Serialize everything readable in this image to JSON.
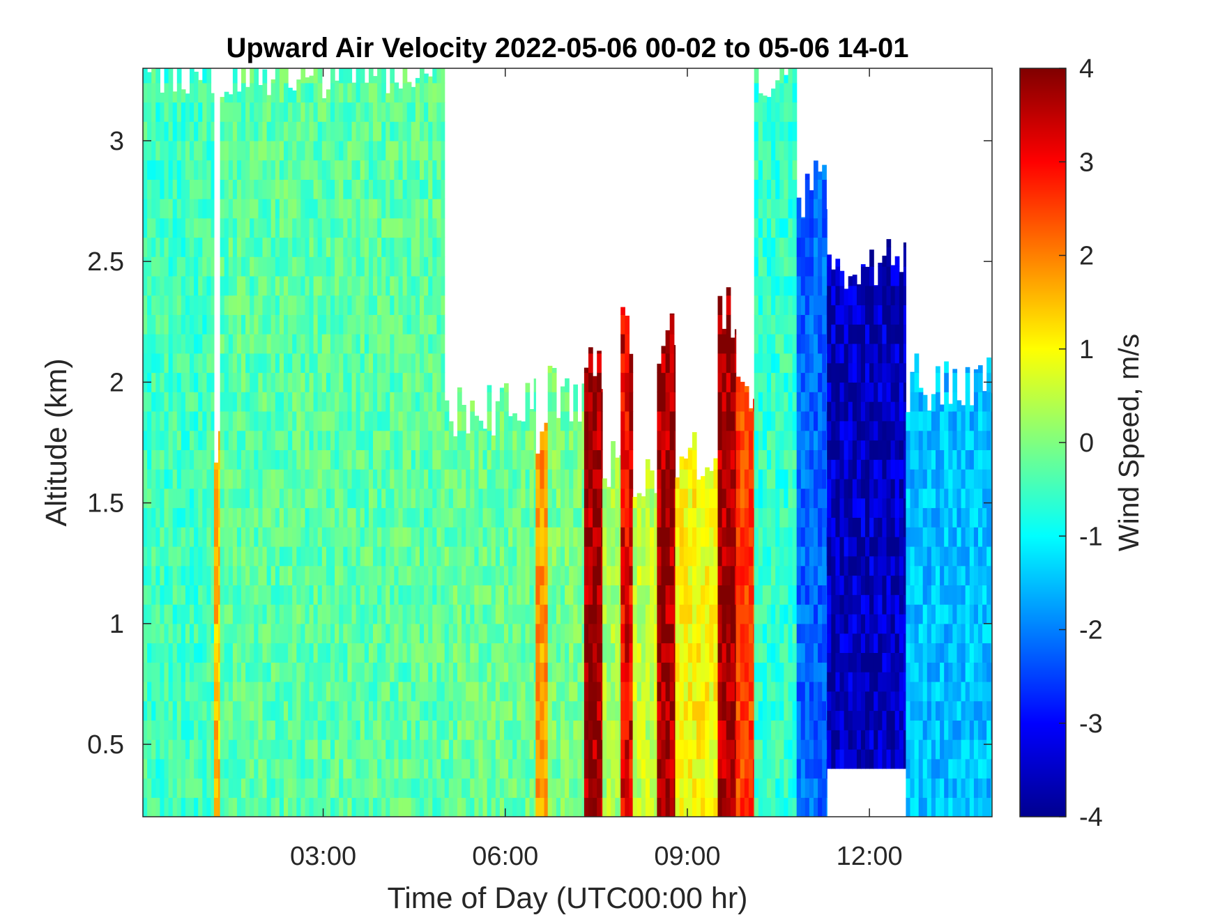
{
  "chart_data": {
    "type": "heatmap",
    "title": "Upward Air Velocity 2022-05-06 00-02 to 05-06 14-01",
    "xlabel": "Time of Day (UTC00:00 hr)",
    "ylabel": "Altitude (km)",
    "colorbar_label": "Wind Speed, m/s",
    "x_range_hours": [
      0.03,
      14.02
    ],
    "y_range_km": [
      0.2,
      3.3
    ],
    "x_ticks": [
      {
        "value": 3,
        "label": "03:00"
      },
      {
        "value": 6,
        "label": "06:00"
      },
      {
        "value": 9,
        "label": "09:00"
      },
      {
        "value": 12,
        "label": "12:00"
      }
    ],
    "y_ticks": [
      {
        "value": 0.5,
        "label": "0.5"
      },
      {
        "value": 1,
        "label": "1"
      },
      {
        "value": 1.5,
        "label": "1.5"
      },
      {
        "value": 2,
        "label": "2"
      },
      {
        "value": 2.5,
        "label": "2.5"
      },
      {
        "value": 3,
        "label": "3"
      }
    ],
    "color_range": [
      -4,
      4
    ],
    "colorbar_ticks": [
      {
        "value": 4,
        "label": "4"
      },
      {
        "value": 3,
        "label": "3"
      },
      {
        "value": 2,
        "label": "2"
      },
      {
        "value": 1,
        "label": "1"
      },
      {
        "value": 0,
        "label": "0"
      },
      {
        "value": -1,
        "label": "-1"
      },
      {
        "value": -2,
        "label": "-2"
      },
      {
        "value": -3,
        "label": "-3"
      },
      {
        "value": -4,
        "label": "-4"
      }
    ],
    "colormap": "jet",
    "colormap_stops": [
      "#00008f",
      "#0000ff",
      "#00ffff",
      "#ffff00",
      "#ff0000",
      "#800000"
    ],
    "grid": false,
    "missing_value_color": "#ffffff",
    "approximate_regions": [
      {
        "t_start": 0.03,
        "t_end": 1.2,
        "alt_min": 0.2,
        "alt_max": 3.3,
        "speed_m_s": -0.5
      },
      {
        "t_start": 1.2,
        "t_end": 1.3,
        "alt_min": 0.2,
        "alt_max": 1.7,
        "speed_m_s": 1.5
      },
      {
        "t_start": 1.3,
        "t_end": 5.0,
        "alt_min": 0.2,
        "alt_max": 3.3,
        "speed_m_s": -0.3
      },
      {
        "t_start": 5.0,
        "t_end": 6.5,
        "alt_min": 0.2,
        "alt_max": 1.9,
        "speed_m_s": -0.2
      },
      {
        "t_start": 6.5,
        "t_end": 6.7,
        "alt_min": 0.2,
        "alt_max": 1.75,
        "speed_m_s": 1.8
      },
      {
        "t_start": 6.7,
        "t_end": 7.3,
        "alt_min": 0.2,
        "alt_max": 1.95,
        "speed_m_s": -0.1
      },
      {
        "t_start": 7.3,
        "t_end": 7.6,
        "alt_min": 0.2,
        "alt_max": 2.05,
        "speed_m_s": 3.8
      },
      {
        "t_start": 7.6,
        "t_end": 7.9,
        "alt_min": 0.2,
        "alt_max": 1.65,
        "speed_m_s": 0.3
      },
      {
        "t_start": 7.9,
        "t_end": 8.1,
        "alt_min": 0.2,
        "alt_max": 2.2,
        "speed_m_s": 3.2
      },
      {
        "t_start": 8.1,
        "t_end": 8.5,
        "alt_min": 0.2,
        "alt_max": 1.6,
        "speed_m_s": 0.5
      },
      {
        "t_start": 8.5,
        "t_end": 8.8,
        "alt_min": 0.2,
        "alt_max": 2.2,
        "speed_m_s": 3.8
      },
      {
        "t_start": 8.8,
        "t_end": 9.5,
        "alt_min": 0.2,
        "alt_max": 1.7,
        "speed_m_s": 1.0
      },
      {
        "t_start": 9.5,
        "t_end": 9.8,
        "alt_min": 0.2,
        "alt_max": 2.3,
        "speed_m_s": 3.8
      },
      {
        "t_start": 9.8,
        "t_end": 10.1,
        "alt_min": 0.2,
        "alt_max": 2.0,
        "speed_m_s": 2.5
      },
      {
        "t_start": 10.1,
        "t_end": 10.8,
        "alt_min": 0.2,
        "alt_max": 3.3,
        "speed_m_s": -0.6
      },
      {
        "t_start": 10.8,
        "t_end": 11.3,
        "alt_min": 0.2,
        "alt_max": 2.8,
        "speed_m_s": -2.2
      },
      {
        "t_start": 11.3,
        "t_end": 12.6,
        "alt_min": 0.4,
        "alt_max": 2.5,
        "speed_m_s": -3.6
      },
      {
        "t_start": 12.6,
        "t_end": 14.02,
        "alt_min": 0.2,
        "alt_max": 2.0,
        "speed_m_s": -1.5
      }
    ]
  }
}
